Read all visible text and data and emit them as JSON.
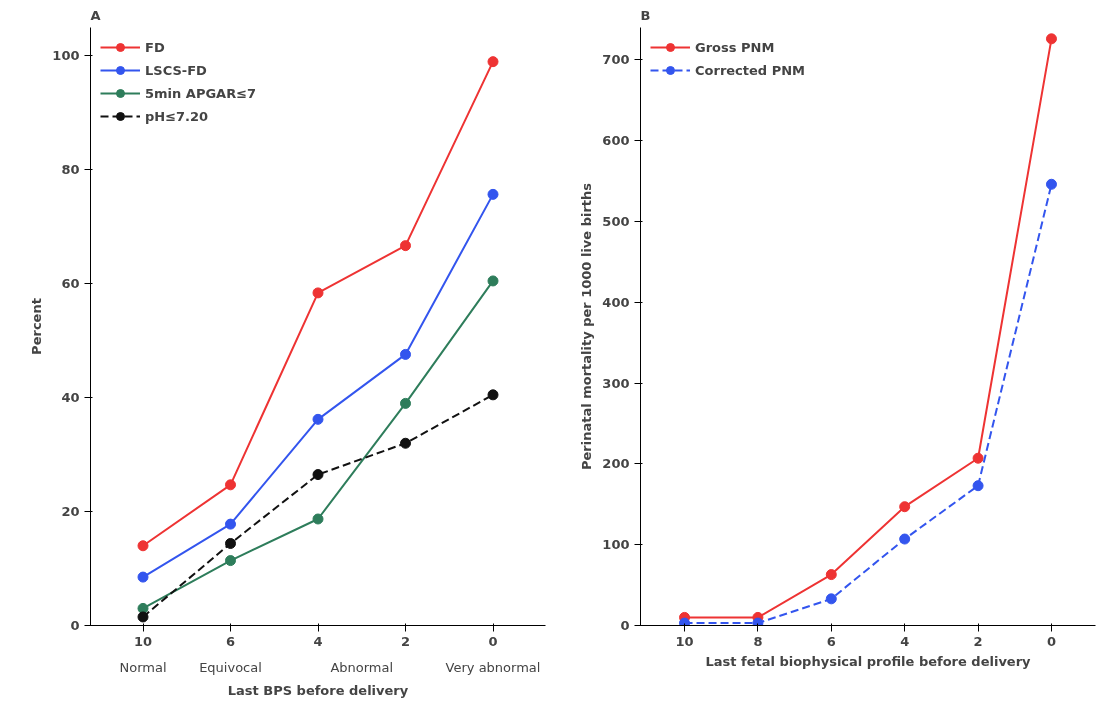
{
  "chart_data": [
    {
      "type": "line",
      "title": "A",
      "xlabel": "Last BPS before delivery",
      "ylabel": "Percent",
      "categories": [
        "10",
        "6",
        "4",
        "2",
        "0"
      ],
      "series": [
        {
          "name": "FD",
          "color": "#ee3333",
          "values": [
            14,
            24.7,
            58.4,
            66.7,
            99
          ]
        },
        {
          "name": "LSCS-FD",
          "color": "#3355ee",
          "values": [
            8.5,
            17.8,
            36.2,
            47.6,
            75.7
          ]
        },
        {
          "name": "5min APGAR≤7",
          "color": "#2e7d5b",
          "values": [
            3,
            11.4,
            18.7,
            39,
            60.5
          ]
        },
        {
          "name": "pH≤7.20",
          "color": "#111111",
          "values": [
            1.5,
            14.4,
            26.5,
            32,
            40.5
          ],
          "line_style": "dashed"
        }
      ],
      "ylim": [
        0,
        105
      ],
      "yticks": [
        0,
        20,
        40,
        60,
        80,
        100
      ],
      "grid": false,
      "legend": "top left",
      "marker": "circle",
      "line_style": "solid",
      "annotations": [
        "Normal",
        "Equivocal",
        "Abnormal",
        "Very abnormal"
      ]
    },
    {
      "type": "line",
      "title": "B",
      "xlabel": "Last fetal biophysical profile before delivery",
      "ylabel": "Perinatal mortality per 1000 live births",
      "categories": [
        "10",
        "8",
        "6",
        "4",
        "2",
        "0"
      ],
      "series": [
        {
          "name": "Gross PNM",
          "color": "#ee3333",
          "values": [
            10,
            10,
            63,
            147,
            207,
            726
          ]
        },
        {
          "name": "Corrected PNM",
          "color": "#3355ee",
          "values": [
            3,
            3,
            33,
            107,
            173,
            546
          ],
          "line_style": "dashed"
        }
      ],
      "ylim": [
        0,
        740
      ],
      "yticks": [
        0,
        100,
        200,
        300,
        400,
        500,
        600,
        700
      ],
      "grid": false,
      "legend": "top left",
      "marker": "circle",
      "line_style": "solid"
    }
  ]
}
